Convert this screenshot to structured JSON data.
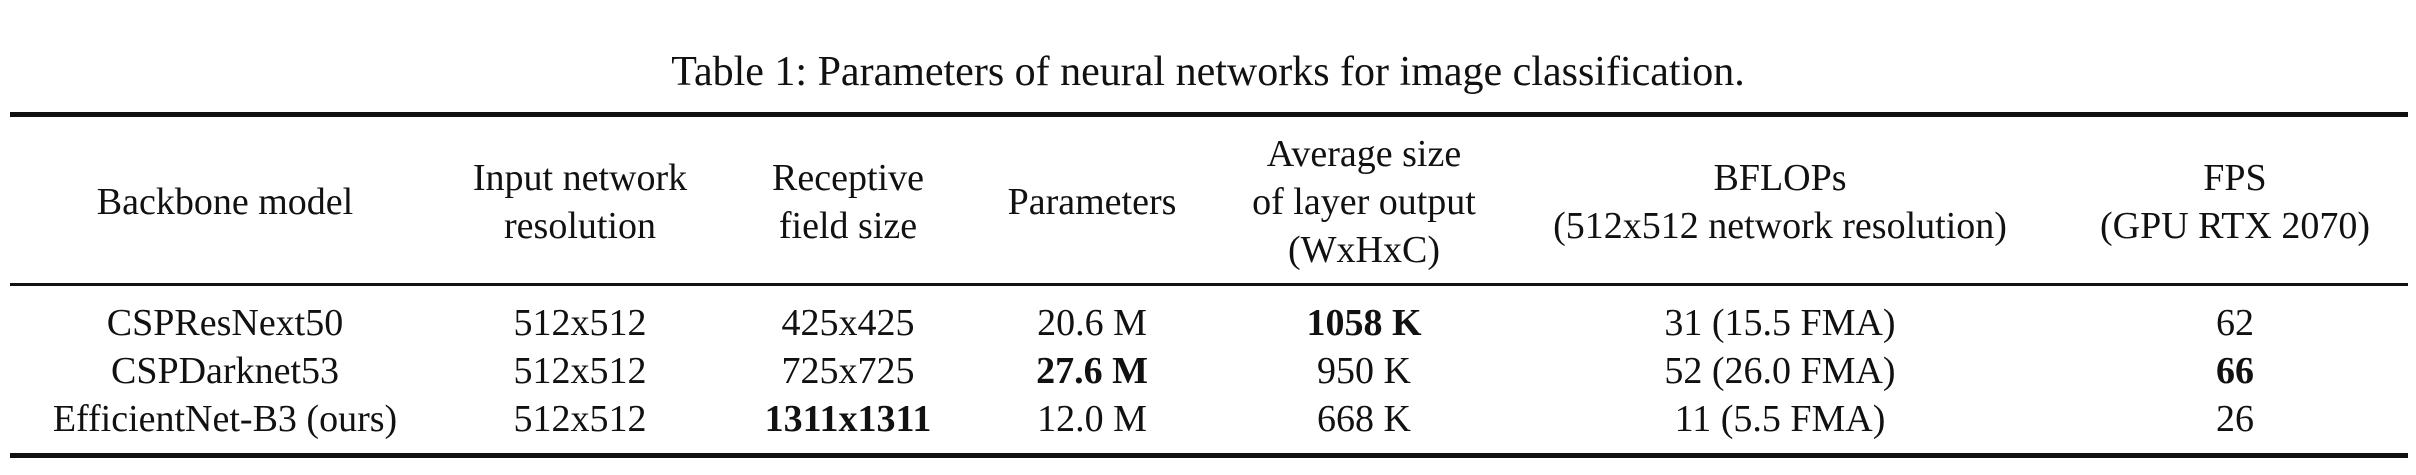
{
  "caption": "Table 1: Parameters of neural networks for image classification.",
  "table": {
    "headers": [
      [
        "Backbone model"
      ],
      [
        "Input network",
        "resolution"
      ],
      [
        "Receptive",
        "field size"
      ],
      [
        "Parameters"
      ],
      [
        "Average size",
        "of layer output",
        "(WxHxC)"
      ],
      [
        "BFLOPs",
        "(512x512 network resolution)"
      ],
      [
        "FPS",
        "(GPU RTX 2070)"
      ]
    ],
    "rows": [
      [
        "CSPResNext50",
        "512x512",
        "425x425",
        "20.6 M",
        "1058 K",
        "31 (15.5 FMA)",
        "62"
      ],
      [
        "CSPDarknet53",
        "512x512",
        "725x725",
        "27.6 M",
        "950 K",
        "52 (26.0 FMA)",
        "66"
      ],
      [
        "EfficientNet-B3 (ours)",
        "512x512",
        "1311x1311",
        "12.0 M",
        "668 K",
        "11 (5.5 FMA)",
        "26"
      ]
    ],
    "bold_cells": [
      {
        "row": 0,
        "col": 4
      },
      {
        "row": 1,
        "col": 3
      },
      {
        "row": 1,
        "col": 6
      },
      {
        "row": 2,
        "col": 2
      }
    ]
  }
}
